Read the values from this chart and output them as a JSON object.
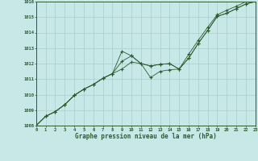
{
  "xlabel": "Graphe pression niveau de la mer (hPa)",
  "bg_color": "#c8e8e8",
  "grid_color": "#a8cccc",
  "line_color": "#2d5a2d",
  "xlim": [
    0,
    23
  ],
  "ylim": [
    1008,
    1016
  ],
  "yticks": [
    1008,
    1009,
    1010,
    1011,
    1012,
    1013,
    1014,
    1015,
    1016
  ],
  "xticks": [
    0,
    1,
    2,
    3,
    4,
    5,
    6,
    7,
    8,
    9,
    10,
    11,
    12,
    13,
    14,
    15,
    16,
    17,
    18,
    19,
    20,
    21,
    22,
    23
  ],
  "series": [
    [
      1008.0,
      1008.6,
      1008.9,
      1009.35,
      1009.95,
      1010.35,
      1010.65,
      1011.05,
      1011.35,
      1012.8,
      1012.5,
      1012.0,
      1011.85,
      1011.95,
      1012.0,
      1011.65,
      1012.35,
      1013.3,
      1014.15,
      1015.05,
      1015.25,
      1015.55,
      1015.85,
      1016.0
    ],
    [
      1008.0,
      1008.6,
      1008.9,
      1009.35,
      1009.95,
      1010.35,
      1010.65,
      1011.05,
      1011.35,
      1011.65,
      1012.1,
      1012.0,
      1011.1,
      1011.5,
      1011.6,
      1011.65,
      1012.35,
      1013.3,
      1014.15,
      1015.05,
      1015.25,
      1015.55,
      1015.85,
      1016.0
    ],
    [
      1008.0,
      1008.6,
      1008.9,
      1009.35,
      1009.95,
      1010.35,
      1010.65,
      1011.05,
      1011.35,
      1012.15,
      1012.5,
      1012.0,
      1011.85,
      1011.95,
      1012.0,
      1011.65,
      1012.6,
      1013.5,
      1014.35,
      1015.15,
      1015.45,
      1015.7,
      1016.0,
      1016.05
    ]
  ]
}
